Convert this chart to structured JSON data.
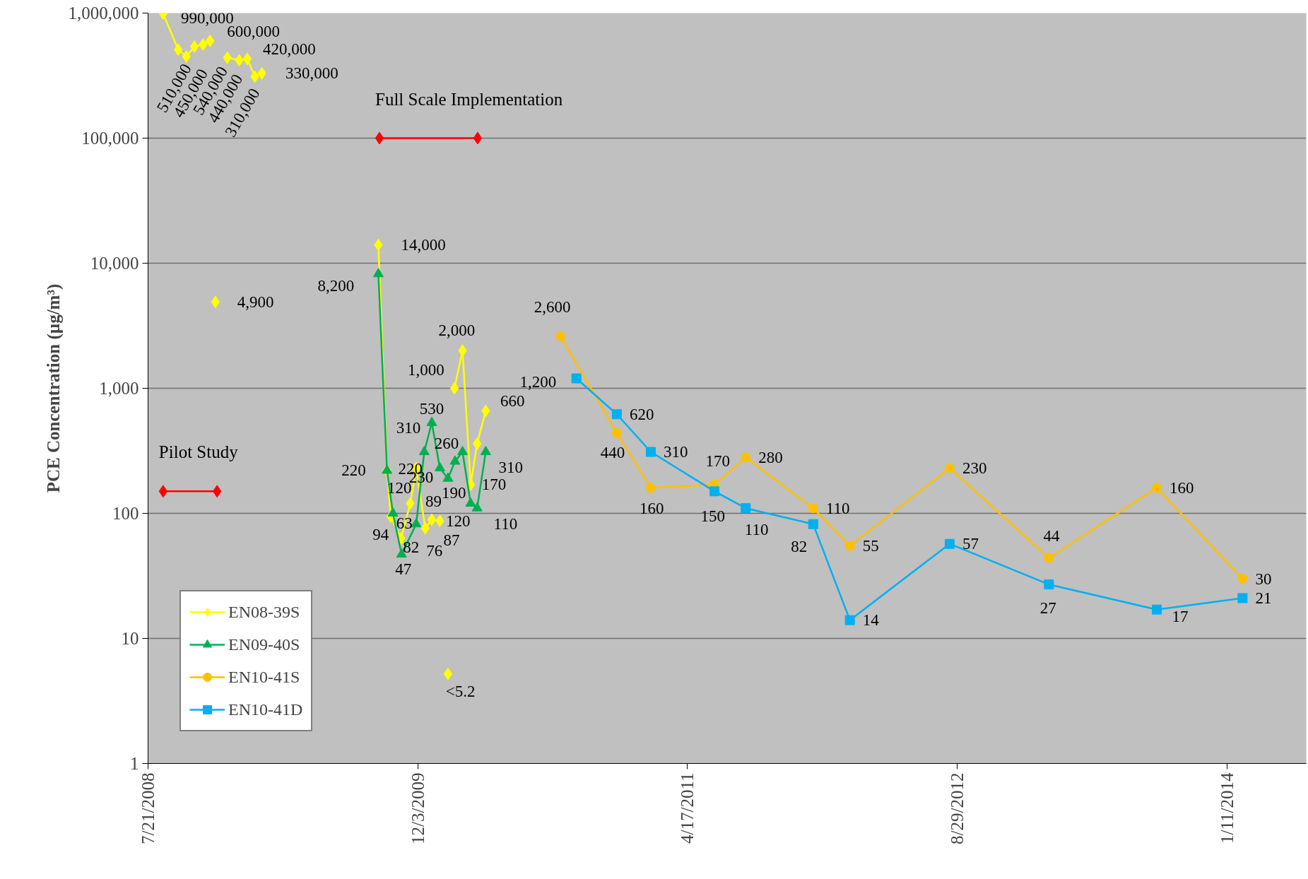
{
  "chart_data": {
    "type": "line",
    "ylabel": "PCE Concentration (µg/m³)",
    "log": "y",
    "grid": "y",
    "legend": "bottom left",
    "xlim": [
      "2008-07-21",
      "2014-06-07"
    ],
    "xticks": [
      {
        "value": "2008-07-21",
        "label": "7/21/2008"
      },
      {
        "value": "2009-12-03",
        "label": "12/3/2009"
      },
      {
        "value": "2011-04-17",
        "label": "4/17/2011"
      },
      {
        "value": "2012-08-29",
        "label": "8/29/2012"
      },
      {
        "value": "2014-01-11",
        "label": "1/11/2014"
      }
    ],
    "ylim": [
      1,
      1000000
    ],
    "yticks": [
      1,
      10,
      100,
      {
        "value": 1000,
        "label": "1,000"
      },
      {
        "value": 10000,
        "label": "10,000"
      },
      {
        "value": 100000,
        "label": "100,000"
      },
      {
        "value": 1000000,
        "label": "1,000,000"
      }
    ],
    "series": [
      {
        "name": "EN08-39S",
        "color": "#ffff00",
        "marker": "diamond",
        "x": [
          "2008-08-18",
          "2008-09-15",
          "2008-09-30",
          "2008-10-15",
          "2008-10-31",
          "2008-11-13",
          "2008-11-18",
          "2008-11-23",
          "2008-12-01",
          "2008-12-15",
          "2009-01-06",
          "2009-01-21",
          "2009-02-04",
          "2009-02-17",
          "2009-05-01",
          "2009-09-21",
          "2009-10-07",
          "2009-10-14",
          "2009-11-02",
          "2009-11-19",
          "2009-11-30",
          "2009-12-17",
          "2009-12-29",
          "2010-01-13",
          "2010-01-20",
          "2010-01-28",
          "2010-02-03",
          "2010-02-09",
          "2010-02-24",
          "2010-03-11",
          "2010-03-23",
          "2010-04-08"
        ],
        "values": [
          990000,
          510000,
          450000,
          540000,
          560000,
          600000,
          null,
          4900,
          null,
          440000,
          420000,
          430000,
          310000,
          330000,
          null,
          14000,
          220,
          94,
          63,
          120,
          230,
          76,
          89,
          87,
          null,
          5.2,
          null,
          1000,
          2000,
          170,
          360,
          660
        ],
        "value_labels": [
          "990,000",
          "510,000",
          "450,000",
          "540,000",
          null,
          "600,000",
          null,
          "4,900",
          null,
          "440,000",
          "420,000",
          null,
          "310,000",
          "330,000",
          null,
          "14,000",
          "220",
          "94",
          "63",
          "120",
          "230",
          "76",
          "89",
          "87",
          null,
          "<5.2",
          null,
          "1,000",
          "2,000",
          "170",
          null,
          "660"
        ]
      },
      {
        "name": "EN09-40S",
        "color": "#00b050",
        "marker": "triangle",
        "x": [
          "2009-09-21",
          "2009-10-07",
          "2009-10-18",
          "2009-11-03",
          "2009-11-30",
          "2009-12-15",
          "2009-12-29",
          "2010-01-13",
          "2010-01-28",
          "2010-02-10",
          "2010-02-24",
          "2010-03-11",
          "2010-03-23",
          "2010-04-08"
        ],
        "values": [
          8200,
          220,
          100,
          47,
          82,
          310,
          530,
          230,
          190,
          260,
          310,
          120,
          110,
          310
        ],
        "value_labels": [
          "8,200",
          "220",
          null,
          "47",
          "82",
          "310",
          "530",
          null,
          "190",
          "260",
          null,
          "120",
          "110",
          "310"
        ]
      },
      {
        "name": "EN10-41S",
        "color": "#ffc000",
        "marker": "circle",
        "x": [
          "2010-08-25",
          "2010-12-07",
          "2011-02-08",
          "2011-06-06",
          "2011-08-03",
          "2011-12-06",
          "2012-02-12",
          "2012-08-15",
          "2013-02-15",
          "2013-09-03",
          "2014-02-09"
        ],
        "values": [
          2600,
          440,
          160,
          170,
          280,
          110,
          55,
          230,
          44,
          160,
          30
        ],
        "value_labels": [
          "2,600",
          "440",
          "160",
          "170",
          "280",
          "110",
          "55",
          "230",
          "44",
          "160",
          "30"
        ]
      },
      {
        "name": "EN10-41D",
        "color": "#00b0f0",
        "marker": "square",
        "x": [
          "2010-09-23",
          "2010-12-07",
          "2011-02-08",
          "2011-06-06",
          "2011-08-03",
          "2011-12-06",
          "2012-02-12",
          "2012-08-15",
          "2013-02-15",
          "2013-09-03",
          "2014-02-09"
        ],
        "values": [
          1200,
          620,
          310,
          150,
          110,
          82,
          14,
          57,
          27,
          17,
          21
        ],
        "value_labels": [
          "1,200",
          "620",
          "310",
          "150",
          "110",
          "82",
          "14",
          "57",
          "27",
          "17",
          "21"
        ]
      },
      {
        "color": "#ff0000",
        "marker": "diamond",
        "x": [
          "2008-08-18",
          "2008-11-26"
        ],
        "values": [
          150,
          150
        ]
      },
      {
        "color": "#ff0000",
        "marker": "diamond",
        "x": [
          "2009-09-23",
          "2010-03-24"
        ],
        "values": [
          100000,
          100000
        ]
      }
    ],
    "annotations": [
      {
        "text": "Pilot Study",
        "x": "2008-08-18",
        "y": 150
      },
      {
        "text": "Full Scale Implementation",
        "x": "2009-09-23",
        "y": 100000
      }
    ]
  }
}
